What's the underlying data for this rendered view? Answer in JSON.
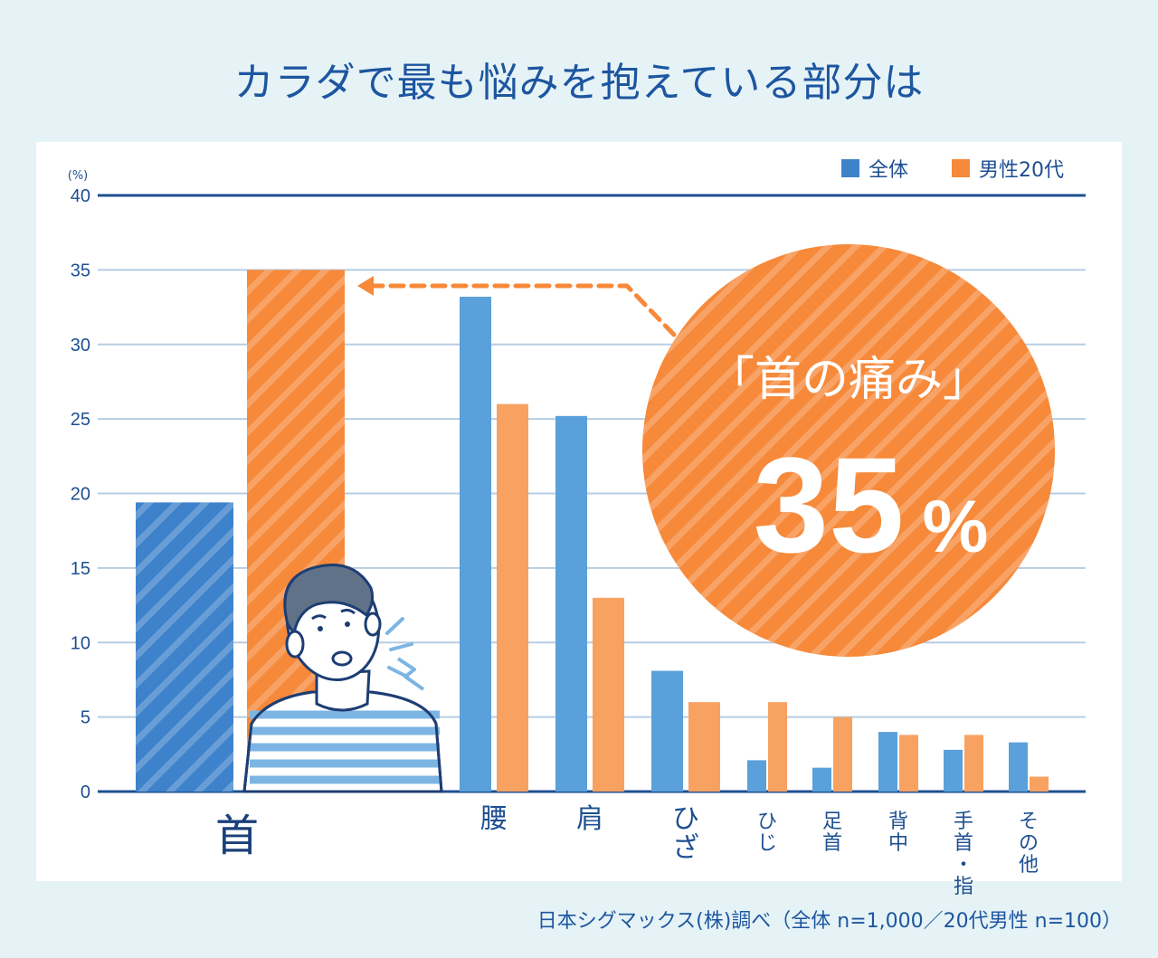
{
  "title": "カラダで最も悩みを抱えている部分は",
  "source": "日本シグマックス(株)調べ（全体 n=1,000／20代男性 n=100）",
  "callout": {
    "label": "「首の痛み」",
    "value": "35",
    "unit": "%"
  },
  "colors": {
    "overall": "#5aa0da",
    "male20s": "#f8a261",
    "overall_highlight": "#3d82cb",
    "male20s_highlight": "#f6893a",
    "axis": "#1d4f91",
    "grid": "#b7cde3",
    "text": "#1d4f91"
  },
  "chart_data": {
    "type": "bar",
    "unit_label": "(%)",
    "ylim": [
      0,
      40
    ],
    "yticks": [
      0,
      5,
      10,
      15,
      20,
      25,
      30,
      35,
      40
    ],
    "categories": [
      "首",
      "腰",
      "肩",
      "ひざ",
      "ひじ",
      "足首",
      "背中",
      "手首・指",
      "その他"
    ],
    "series": [
      {
        "name": "全体",
        "values": [
          19.4,
          33.2,
          25.2,
          8.1,
          2.1,
          1.6,
          4.0,
          2.8,
          3.3
        ]
      },
      {
        "name": "男性20代",
        "values": [
          35,
          26,
          13,
          6,
          6,
          5,
          3.8,
          3.8,
          1.0
        ]
      }
    ],
    "grid": true,
    "legend": "top-right"
  }
}
